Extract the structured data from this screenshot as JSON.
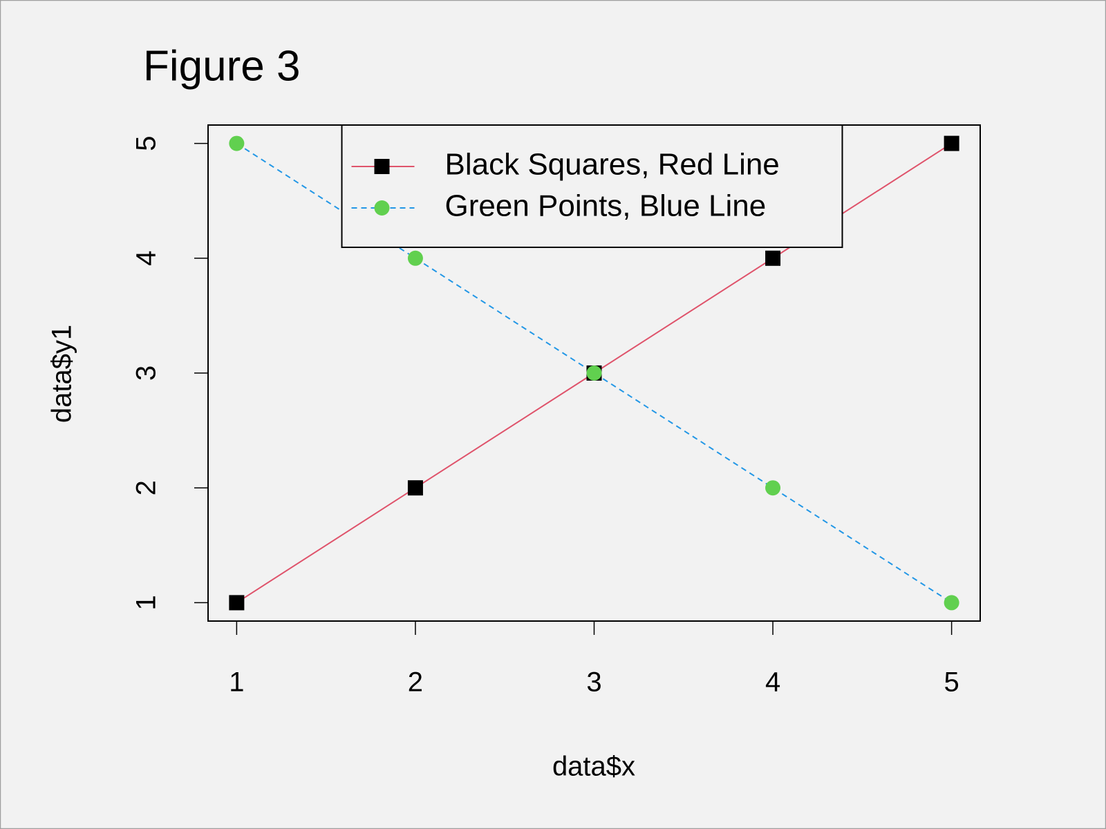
{
  "chart_data": {
    "type": "line",
    "title": "Figure 3",
    "x_label": "data$x",
    "y_label": "data$y1",
    "x": [
      1,
      2,
      3,
      4,
      5
    ],
    "series": [
      {
        "name": "Black Squares, Red Line",
        "values": [
          1,
          2,
          3,
          4,
          5
        ],
        "color": "#DF536B",
        "marker_color": "#000000",
        "marker": "square",
        "linestyle": "solid"
      },
      {
        "name": "Green Points, Blue Line",
        "values": [
          5,
          4,
          3,
          2,
          1
        ],
        "color": "#2297E6",
        "marker_color": "#61D04F",
        "marker": "circle",
        "linestyle": "dashed"
      }
    ],
    "xlim": [
      0.84,
      5.16
    ],
    "ylim": [
      0.84,
      5.16
    ],
    "xticks": [
      1,
      2,
      3,
      4,
      5
    ],
    "yticks": [
      1,
      2,
      3,
      4,
      5
    ],
    "grid": false,
    "legend_position": "top"
  }
}
